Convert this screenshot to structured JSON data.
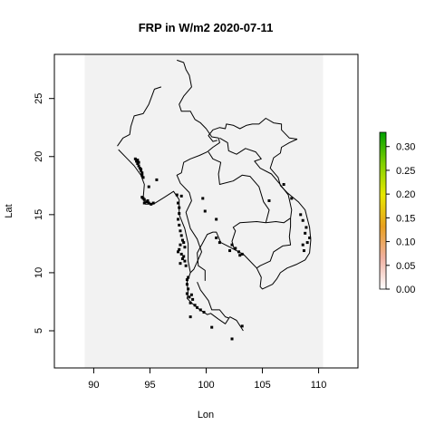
{
  "chart_data": {
    "type": "heatmap",
    "title": "FRP in W/m2 2020-07-11",
    "xlabel": "Lon",
    "ylabel": "Lat",
    "xlim": [
      86.5,
      113.5
    ],
    "ylim": [
      1.8,
      28.8
    ],
    "x_ticks": [
      90,
      95,
      100,
      105,
      110
    ],
    "y_ticks": [
      5,
      10,
      15,
      20,
      25
    ],
    "raster_extent": {
      "lon": [
        89.2,
        110.4
      ],
      "lat": [
        1.8,
        28.8
      ]
    },
    "raster_fill": "#f2f2f2",
    "legend": {
      "placement": "right",
      "ticks": [
        "0.00",
        "0.05",
        "0.10",
        "0.15",
        "0.20",
        "0.25",
        "0.30"
      ],
      "range": [
        0,
        0.33
      ],
      "colors": [
        "#ffffff",
        "#f0b0a0",
        "#e8a020",
        "#e8e800",
        "#80d000",
        "#00a000"
      ]
    },
    "boundaries": [
      [
        [
          97.4,
          28.3
        ],
        [
          98.0,
          28.1
        ],
        [
          98.2,
          27.5
        ],
        [
          98.5,
          27.0
        ],
        [
          98.7,
          26.0
        ],
        [
          98.0,
          25.2
        ],
        [
          97.6,
          24.5
        ],
        [
          97.8,
          23.9
        ],
        [
          98.6,
          23.9
        ],
        [
          99.0,
          23.2
        ],
        [
          99.5,
          22.9
        ],
        [
          100.0,
          22.4
        ],
        [
          100.5,
          21.7
        ],
        [
          101.1,
          21.6
        ],
        [
          101.2,
          21.2
        ],
        [
          100.6,
          20.8
        ],
        [
          100.1,
          20.4
        ],
        [
          99.4,
          20.1
        ],
        [
          98.6,
          19.8
        ],
        [
          98.0,
          19.5
        ],
        [
          97.8,
          18.6
        ],
        [
          97.4,
          18.4
        ],
        [
          97.7,
          17.7
        ],
        [
          98.5,
          16.9
        ],
        [
          98.7,
          16.2
        ],
        [
          98.2,
          15.2
        ],
        [
          98.6,
          13.8
        ],
        [
          99.2,
          12.9
        ],
        [
          99.6,
          11.8
        ],
        [
          98.9,
          10.3
        ],
        [
          98.6,
          10.0
        ]
      ],
      [
        [
          96.0,
          26.0
        ],
        [
          95.4,
          25.8
        ],
        [
          94.9,
          24.5
        ],
        [
          94.4,
          23.7
        ],
        [
          93.6,
          23.5
        ],
        [
          93.3,
          22.6
        ],
        [
          93.2,
          21.9
        ],
        [
          92.6,
          21.6
        ],
        [
          92.1,
          20.9
        ]
      ],
      [
        [
          92.2,
          20.6
        ],
        [
          93.0,
          19.8
        ],
        [
          93.6,
          19.2
        ],
        [
          94.2,
          18.4
        ],
        [
          94.5,
          17.6
        ],
        [
          94.4,
          16.4
        ],
        [
          94.6,
          15.9
        ],
        [
          95.3,
          15.9
        ],
        [
          96.3,
          16.5
        ],
        [
          97.1,
          17.0
        ],
        [
          97.6,
          16.3
        ],
        [
          97.6,
          15.0
        ],
        [
          98.1,
          13.8
        ],
        [
          98.4,
          12.5
        ],
        [
          98.4,
          11.0
        ],
        [
          98.6,
          10.0
        ]
      ],
      [
        [
          98.6,
          10.0
        ],
        [
          98.3,
          9.2
        ],
        [
          98.4,
          8.2
        ],
        [
          98.3,
          7.8
        ],
        [
          98.7,
          7.4
        ],
        [
          99.3,
          6.9
        ],
        [
          100.1,
          6.4
        ],
        [
          100.4,
          6.5
        ],
        [
          101.1,
          6.0
        ]
      ],
      [
        [
          99.2,
          9.2
        ],
        [
          99.5,
          8.5
        ],
        [
          100.2,
          7.6
        ],
        [
          100.5,
          6.8
        ],
        [
          101.2,
          6.8
        ],
        [
          101.7,
          6.2
        ],
        [
          102.0,
          6.1
        ]
      ],
      [
        [
          101.1,
          6.0
        ],
        [
          101.7,
          5.6
        ],
        [
          102.1,
          6.2
        ]
      ],
      [
        [
          99.9,
          9.3
        ],
        [
          99.9,
          10.2
        ],
        [
          99.3,
          10.6
        ],
        [
          99.2,
          11.7
        ],
        [
          99.6,
          12.4
        ],
        [
          100.1,
          13.3
        ],
        [
          100.6,
          13.5
        ],
        [
          100.9,
          13.5
        ],
        [
          101.3,
          12.6
        ],
        [
          102.1,
          12.2
        ],
        [
          102.5,
          12.0
        ]
      ],
      [
        [
          102.5,
          12.0
        ],
        [
          102.3,
          12.7
        ],
        [
          102.6,
          13.6
        ],
        [
          102.4,
          13.9
        ],
        [
          103.0,
          14.3
        ],
        [
          104.5,
          14.4
        ],
        [
          105.3,
          14.3
        ]
      ],
      [
        [
          105.3,
          14.3
        ],
        [
          105.6,
          15.4
        ],
        [
          105.1,
          16.1
        ],
        [
          104.7,
          17.4
        ],
        [
          103.9,
          18.3
        ],
        [
          103.2,
          18.4
        ],
        [
          102.4,
          17.9
        ],
        [
          101.2,
          17.6
        ],
        [
          101.1,
          18.5
        ],
        [
          101.3,
          19.5
        ],
        [
          100.6,
          19.8
        ],
        [
          100.2,
          20.4
        ]
      ],
      [
        [
          101.2,
          21.6
        ],
        [
          101.9,
          21.2
        ],
        [
          102.0,
          20.5
        ],
        [
          102.7,
          20.2
        ],
        [
          103.5,
          20.7
        ],
        [
          104.4,
          20.4
        ],
        [
          104.9,
          19.8
        ],
        [
          104.3,
          19.6
        ],
        [
          104.8,
          19.0
        ],
        [
          105.8,
          18.5
        ],
        [
          106.5,
          17.7
        ],
        [
          107.3,
          16.7
        ],
        [
          107.4,
          16.3
        ],
        [
          107.6,
          15.4
        ],
        [
          107.5,
          14.7
        ]
      ],
      [
        [
          107.5,
          14.7
        ],
        [
          107.5,
          14.0
        ],
        [
          107.4,
          13.1
        ],
        [
          107.5,
          12.4
        ],
        [
          106.8,
          12.3
        ],
        [
          106.0,
          11.8
        ],
        [
          105.7,
          11.0
        ],
        [
          104.8,
          10.6
        ],
        [
          104.5,
          10.4
        ]
      ],
      [
        [
          104.5,
          10.4
        ],
        [
          103.9,
          11.0
        ],
        [
          103.3,
          11.6
        ],
        [
          102.9,
          11.8
        ],
        [
          102.5,
          12.0
        ]
      ],
      [
        [
          107.5,
          14.7
        ],
        [
          106.9,
          14.3
        ],
        [
          106.2,
          14.4
        ],
        [
          105.3,
          14.3
        ]
      ],
      [
        [
          101.0,
          21.4
        ],
        [
          100.6,
          21.3
        ],
        [
          100.2,
          21.8
        ],
        [
          100.6,
          22.3
        ],
        [
          101.2,
          22.5
        ],
        [
          101.7,
          22.4
        ],
        [
          101.8,
          22.8
        ],
        [
          102.4,
          22.7
        ],
        [
          103.0,
          22.4
        ],
        [
          103.6,
          22.7
        ],
        [
          104.1,
          22.8
        ],
        [
          104.7,
          22.8
        ],
        [
          105.3,
          23.3
        ],
        [
          106.0,
          22.9
        ],
        [
          106.7,
          22.8
        ],
        [
          106.7,
          22.3
        ],
        [
          107.4,
          21.6
        ],
        [
          108.1,
          21.5
        ]
      ],
      [
        [
          108.1,
          21.5
        ],
        [
          107.4,
          21.2
        ],
        [
          106.7,
          20.8
        ],
        [
          106.6,
          20.3
        ],
        [
          106.0,
          19.9
        ],
        [
          105.7,
          19.0
        ],
        [
          106.4,
          18.2
        ],
        [
          106.6,
          17.5
        ],
        [
          107.2,
          16.9
        ],
        [
          108.2,
          16.1
        ],
        [
          108.8,
          15.4
        ],
        [
          109.2,
          13.9
        ],
        [
          109.3,
          12.8
        ],
        [
          109.2,
          11.7
        ],
        [
          108.8,
          11.1
        ],
        [
          108.0,
          10.7
        ],
        [
          107.2,
          10.4
        ],
        [
          106.6,
          10.0
        ],
        [
          106.3,
          9.5
        ],
        [
          105.9,
          9.0
        ],
        [
          105.0,
          8.6
        ],
        [
          104.8,
          8.8
        ],
        [
          104.9,
          9.6
        ],
        [
          104.5,
          10.4
        ]
      ],
      [
        [
          102.1,
          6.2
        ],
        [
          102.7,
          5.9
        ],
        [
          103.3,
          5.0
        ]
      ]
    ],
    "fire_pixels": [
      [
        93.7,
        19.8
      ],
      [
        93.8,
        19.6
      ],
      [
        93.9,
        19.4
      ],
      [
        94.0,
        19.2
      ],
      [
        94.1,
        19.0
      ],
      [
        94.2,
        18.8
      ],
      [
        94.3,
        18.6
      ],
      [
        94.3,
        18.4
      ],
      [
        94.4,
        18.2
      ],
      [
        94.2,
        18.9
      ],
      [
        93.9,
        19.7
      ],
      [
        94.0,
        19.5
      ],
      [
        94.3,
        16.5
      ],
      [
        94.5,
        16.3
      ],
      [
        94.7,
        16.1
      ],
      [
        94.9,
        16.0
      ],
      [
        95.1,
        15.9
      ],
      [
        95.3,
        16.0
      ],
      [
        94.5,
        16.0
      ],
      [
        94.4,
        16.4
      ],
      [
        94.8,
        16.2
      ],
      [
        97.4,
        16.7
      ],
      [
        97.5,
        16.0
      ],
      [
        97.6,
        15.6
      ],
      [
        97.6,
        15.1
      ],
      [
        97.5,
        14.6
      ],
      [
        97.6,
        14.1
      ],
      [
        97.7,
        13.6
      ],
      [
        97.8,
        13.2
      ],
      [
        97.9,
        12.8
      ],
      [
        97.7,
        12.4
      ],
      [
        97.6,
        12.0
      ],
      [
        97.5,
        11.8
      ],
      [
        97.8,
        11.6
      ],
      [
        98.0,
        12.6
      ],
      [
        98.1,
        12.2
      ],
      [
        98.0,
        11.4
      ],
      [
        98.1,
        11.0
      ],
      [
        98.2,
        10.6
      ],
      [
        97.9,
        11.2
      ],
      [
        97.7,
        10.8
      ],
      [
        98.4,
        9.6
      ],
      [
        98.3,
        9.0
      ],
      [
        98.4,
        8.6
      ],
      [
        98.3,
        8.2
      ],
      [
        98.5,
        7.9
      ],
      [
        98.8,
        7.7
      ],
      [
        98.6,
        7.4
      ],
      [
        99.0,
        7.2
      ],
      [
        99.2,
        7.0
      ],
      [
        99.5,
        6.8
      ],
      [
        99.8,
        6.6
      ],
      [
        98.7,
        8.1
      ],
      [
        100.9,
        13.0
      ],
      [
        101.2,
        12.6
      ],
      [
        102.1,
        11.9
      ],
      [
        102.3,
        12.4
      ],
      [
        102.6,
        12.1
      ],
      [
        102.9,
        11.8
      ],
      [
        103.2,
        11.6
      ],
      [
        103.0,
        11.5
      ],
      [
        108.4,
        15.0
      ],
      [
        108.8,
        13.4
      ],
      [
        109.0,
        12.6
      ],
      [
        108.7,
        11.9
      ],
      [
        108.6,
        12.4
      ],
      [
        108.9,
        13.9
      ],
      [
        108.6,
        14.5
      ],
      [
        107.6,
        16.4
      ],
      [
        106.9,
        17.6
      ],
      [
        109.2,
        13.0
      ],
      [
        100.9,
        14.6
      ],
      [
        99.9,
        15.3
      ],
      [
        98.6,
        6.2
      ],
      [
        103.2,
        5.4
      ],
      [
        102.3,
        4.3
      ],
      [
        100.5,
        5.3
      ],
      [
        99.7,
        16.4
      ],
      [
        105.6,
        16.2
      ],
      [
        97.8,
        16.6
      ],
      [
        98.3,
        9.4
      ],
      [
        95.6,
        18.0
      ],
      [
        94.9,
        17.4
      ]
    ]
  }
}
